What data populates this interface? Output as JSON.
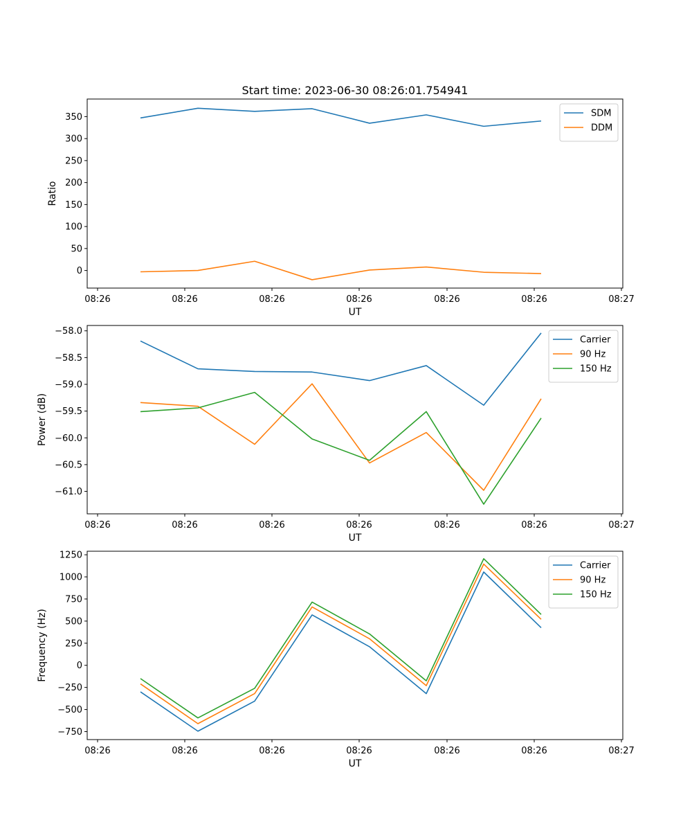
{
  "title": "Start time: 2023-06-30 08:26:01.754941",
  "colors": {
    "blue": "#1f77b4",
    "orange": "#ff7f0e",
    "green": "#2ca02c"
  },
  "chart_data": [
    {
      "type": "line",
      "x_tick_labels": [
        "08:26",
        "08:26",
        "08:26",
        "08:26",
        "08:26",
        "08:26",
        "08:27"
      ],
      "xlabel": "UT",
      "ylabel": "Ratio",
      "ylim": [
        -40,
        390
      ],
      "yticks": [
        0,
        50,
        100,
        150,
        200,
        250,
        300,
        350
      ],
      "y_tick_labels": [
        "0",
        "50",
        "100",
        "150",
        "200",
        "250",
        "300",
        "350"
      ],
      "legend_position": "top-right",
      "series": [
        {
          "name": "SDM",
          "color": "#1f77b4",
          "values": [
            347,
            369,
            362,
            368,
            335,
            354,
            328,
            340
          ]
        },
        {
          "name": "DDM",
          "color": "#ff7f0e",
          "values": [
            -3,
            0,
            21,
            -21,
            1,
            8,
            -4,
            -7
          ]
        }
      ]
    },
    {
      "type": "line",
      "x_tick_labels": [
        "08:26",
        "08:26",
        "08:26",
        "08:26",
        "08:26",
        "08:26",
        "08:27"
      ],
      "xlabel": "UT",
      "ylabel": "Power (dB)",
      "ylim": [
        -61.42,
        -57.9
      ],
      "yticks": [
        -58.0,
        -58.5,
        -59.0,
        -59.5,
        -60.0,
        -60.5,
        -61.0
      ],
      "y_tick_labels": [
        "−58.0",
        "−58.5",
        "−59.0",
        "−59.5",
        "−60.0",
        "−60.5",
        "−61.0"
      ],
      "legend_position": "top-right",
      "series": [
        {
          "name": "Carrier",
          "color": "#1f77b4",
          "values": [
            -58.19,
            -58.71,
            -58.76,
            -58.77,
            -58.93,
            -58.65,
            -59.39,
            -58.04
          ]
        },
        {
          "name": "90 Hz",
          "color": "#ff7f0e",
          "values": [
            -59.34,
            -59.41,
            -60.12,
            -58.99,
            -60.47,
            -59.9,
            -60.98,
            -59.27
          ]
        },
        {
          "name": "150 Hz",
          "color": "#2ca02c",
          "values": [
            -59.51,
            -59.44,
            -59.15,
            -60.02,
            -60.42,
            -59.51,
            -61.24,
            -59.63
          ]
        }
      ]
    },
    {
      "type": "line",
      "x_tick_labels": [
        "08:26",
        "08:26",
        "08:26",
        "08:26",
        "08:26",
        "08:26",
        "08:27"
      ],
      "xlabel": "UT",
      "ylabel": "Frequency (Hz)",
      "ylim": [
        -840,
        1290
      ],
      "yticks": [
        -750,
        -500,
        -250,
        0,
        250,
        500,
        750,
        1000,
        1250
      ],
      "y_tick_labels": [
        "−750",
        "−500",
        "−250",
        "0",
        "250",
        "500",
        "750",
        "1000",
        "1250"
      ],
      "legend_position": "top-right",
      "series": [
        {
          "name": "Carrier",
          "color": "#1f77b4",
          "values": [
            -300,
            -745,
            -405,
            570,
            210,
            -320,
            1055,
            425
          ]
        },
        {
          "name": "90 Hz",
          "color": "#ff7f0e",
          "values": [
            -210,
            -660,
            -320,
            660,
            300,
            -230,
            1145,
            520
          ]
        },
        {
          "name": "150 Hz",
          "color": "#2ca02c",
          "values": [
            -150,
            -595,
            -260,
            715,
            355,
            -175,
            1205,
            575
          ]
        }
      ]
    }
  ]
}
